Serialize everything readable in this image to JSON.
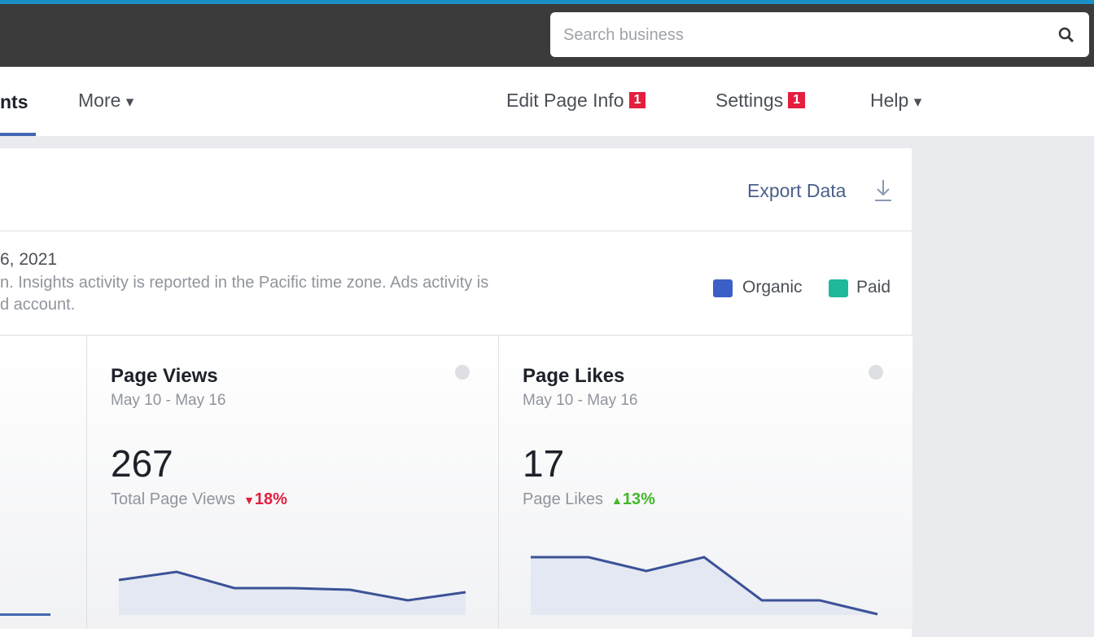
{
  "search": {
    "placeholder": "Search business"
  },
  "nav": {
    "tabs": [
      "nts",
      "More"
    ],
    "actions": [
      {
        "label": "Edit Page Info",
        "badge": "1"
      },
      {
        "label": "Settings",
        "badge": "1"
      },
      {
        "label": "Help"
      }
    ]
  },
  "toolbar": {
    "export": "Export Data"
  },
  "info": {
    "date": "6, 2021",
    "lines": [
      "n. Insights activity is reported in the Pacific time zone. Ads activity is",
      "d account."
    ]
  },
  "legend": [
    "Organic",
    "Paid"
  ],
  "cards": [
    {
      "title": "Page Views",
      "range": "May 10 - May 16",
      "value": "267",
      "caption": "Total Page Views",
      "change": "18%",
      "sparkline": [
        43,
        53,
        33,
        33,
        31,
        18,
        28
      ]
    },
    {
      "title": "Page Likes",
      "range": "May 10 - May 16",
      "value": "17",
      "caption": "Page Likes",
      "change": "13%",
      "sparkline": [
        71,
        71,
        54,
        71,
        18,
        18,
        1
      ]
    }
  ]
}
